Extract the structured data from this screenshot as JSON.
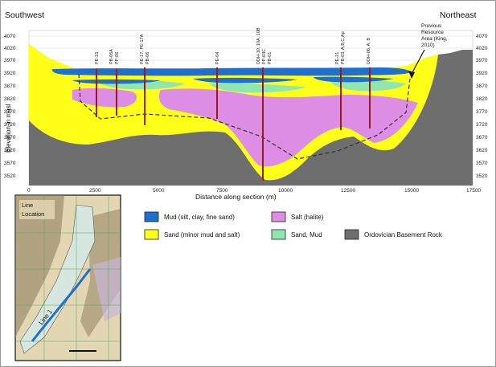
{
  "section": {
    "left_label": "Southwest",
    "right_label": "Northeast",
    "y_axis_label": "Elevation in masl",
    "x_axis_label": "Distance along section (m)",
    "y_ticks": [
      "4070",
      "4020",
      "3970",
      "3920",
      "3870",
      "3820",
      "3770",
      "3720",
      "3670",
      "3620",
      "3570",
      "3520"
    ],
    "x_ticks": [
      "0",
      "2500",
      "5000",
      "7500",
      "10000",
      "12500",
      "15000",
      "17500"
    ],
    "annotation": "Previous Resource Area (King, 2010)",
    "annotation_lines": [
      "Previous",
      "Resource",
      "Area (King,",
      "2010)"
    ],
    "wells": [
      "PE-15",
      "PB-06A",
      "PP-06",
      "PE-17, PE-17A",
      "PB-06",
      "PE-04",
      "DDH-10, 10A, 10B",
      "PP-03C",
      "PB-01",
      "PE-21",
      "PB-03, A,B,C,Ap",
      "DDH-06, A, B"
    ]
  },
  "inset_map": {
    "title_line1": "Line",
    "title_line2": "Location",
    "line_label": "Line 1"
  },
  "legend": [
    {
      "label": "Mud (silt, clay, fine sand)",
      "color": "#1e6fd0"
    },
    {
      "label": "Salt (halite)",
      "color": "#dd8ee4"
    },
    {
      "label": "Sand (minor mud and salt)",
      "color": "#ffff1a"
    },
    {
      "label": "Sand, Mud",
      "color": "#8fe6b0"
    },
    {
      "label": "Ordovician Basement Rock",
      "color": "#6e6e6e"
    }
  ]
}
